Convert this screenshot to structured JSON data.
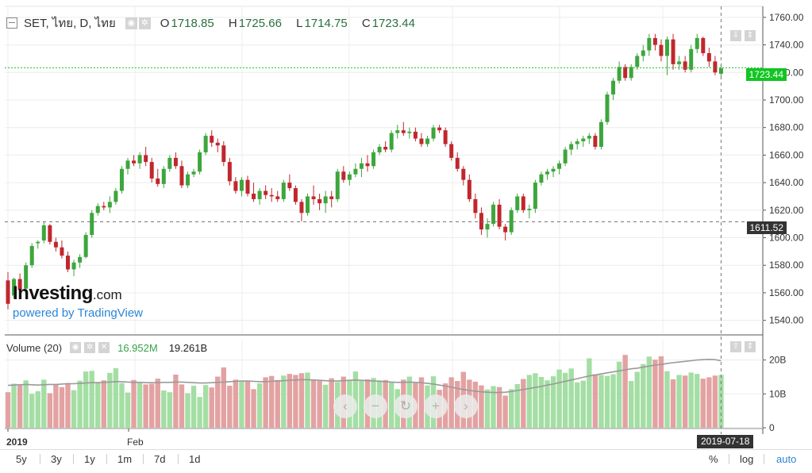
{
  "legend": {
    "title": "SET, ไทย, D, ไทย",
    "open_label": "O",
    "open": "1718.85",
    "high_label": "H",
    "high": "1725.66",
    "low_label": "L",
    "low": "1714.75",
    "close_label": "C",
    "close": "1723.44"
  },
  "volume_legend": {
    "title": "Volume (20)",
    "value1": "16.952M",
    "value2": "19.261B"
  },
  "logo": {
    "brand": "Investing",
    "domain": ".com",
    "powered": "powered by TradingView"
  },
  "price_tags": {
    "last": "1723.44",
    "crosshair": "1611.52"
  },
  "crosshair_date": "2019-07-18",
  "toolbar": {
    "ranges": [
      "5y",
      "3y",
      "1y",
      "1m",
      "7d",
      "1d"
    ],
    "percent": "%",
    "log": "log",
    "auto": "auto"
  },
  "colors": {
    "up": "#3da63d",
    "down": "#c0272d",
    "up_vol": "#a4dea4",
    "down_vol": "#e3a2a2",
    "last_price": "#11c522",
    "ma": "#9a9a9a"
  },
  "icons": {
    "nav": [
      "chevron-left-icon",
      "minus-icon",
      "reset-icon",
      "plus-icon",
      "chevron-right-icon"
    ]
  },
  "chart_data": {
    "type": "candlestick",
    "symbol": "SET",
    "interval": "D",
    "price_axis": {
      "range": [
        1530,
        1768
      ],
      "ticks": [
        1540,
        1560,
        1580,
        1600,
        1620,
        1640,
        1660,
        1680,
        1700,
        1720,
        1740,
        1760
      ]
    },
    "volume_axis": {
      "range": [
        0,
        26
      ],
      "ticks": [
        0,
        10,
        20
      ],
      "tick_labels": [
        "0",
        "10B",
        "20B"
      ]
    },
    "x_labels": [
      "2019",
      "Feb"
    ],
    "crosshair": {
      "price": 1611.52,
      "date": "2019-07-18"
    },
    "last_price": 1723.44,
    "ohlc": [
      [
        1569,
        1575,
        1548,
        1552
      ],
      [
        1558,
        1571,
        1556,
        1570
      ],
      [
        1570,
        1574,
        1560,
        1562
      ],
      [
        1563,
        1582,
        1562,
        1580
      ],
      [
        1580,
        1596,
        1578,
        1594
      ],
      [
        1596,
        1598,
        1592,
        1597
      ],
      [
        1598,
        1612,
        1596,
        1609
      ],
      [
        1609,
        1610,
        1595,
        1597
      ],
      [
        1597,
        1600,
        1590,
        1593
      ],
      [
        1593,
        1598,
        1585,
        1587
      ],
      [
        1587,
        1590,
        1575,
        1577
      ],
      [
        1577,
        1584,
        1572,
        1582
      ],
      [
        1582,
        1588,
        1578,
        1586
      ],
      [
        1586,
        1604,
        1585,
        1602
      ],
      [
        1602,
        1620,
        1600,
        1618
      ],
      [
        1618,
        1625,
        1616,
        1623
      ],
      [
        1623,
        1626,
        1620,
        1622
      ],
      [
        1622,
        1630,
        1618,
        1626
      ],
      [
        1626,
        1636,
        1624,
        1634
      ],
      [
        1634,
        1652,
        1632,
        1650
      ],
      [
        1650,
        1658,
        1646,
        1656
      ],
      [
        1656,
        1660,
        1652,
        1654
      ],
      [
        1654,
        1662,
        1650,
        1660
      ],
      [
        1660,
        1666,
        1652,
        1655
      ],
      [
        1655,
        1658,
        1640,
        1643
      ],
      [
        1643,
        1650,
        1637,
        1639
      ],
      [
        1639,
        1652,
        1636,
        1650
      ],
      [
        1650,
        1660,
        1648,
        1658
      ],
      [
        1658,
        1662,
        1650,
        1652
      ],
      [
        1652,
        1656,
        1636,
        1638
      ],
      [
        1638,
        1648,
        1636,
        1646
      ],
      [
        1646,
        1650,
        1644,
        1648
      ],
      [
        1648,
        1664,
        1646,
        1662
      ],
      [
        1662,
        1676,
        1660,
        1674
      ],
      [
        1674,
        1678,
        1666,
        1669
      ],
      [
        1669,
        1672,
        1662,
        1667
      ],
      [
        1667,
        1670,
        1652,
        1655
      ],
      [
        1655,
        1658,
        1638,
        1641
      ],
      [
        1641,
        1644,
        1632,
        1634
      ],
      [
        1634,
        1644,
        1630,
        1642
      ],
      [
        1642,
        1645,
        1630,
        1632
      ],
      [
        1632,
        1640,
        1626,
        1628
      ],
      [
        1628,
        1636,
        1624,
        1634
      ],
      [
        1634,
        1638,
        1628,
        1631
      ],
      [
        1631,
        1636,
        1626,
        1630
      ],
      [
        1630,
        1634,
        1626,
        1628
      ],
      [
        1628,
        1642,
        1626,
        1640
      ],
      [
        1640,
        1646,
        1634,
        1636
      ],
      [
        1636,
        1638,
        1624,
        1626
      ],
      [
        1626,
        1628,
        1612,
        1618
      ],
      [
        1618,
        1632,
        1616,
        1630
      ],
      [
        1630,
        1638,
        1624,
        1628
      ],
      [
        1628,
        1632,
        1620,
        1625
      ],
      [
        1625,
        1634,
        1618,
        1630
      ],
      [
        1630,
        1634,
        1622,
        1628
      ],
      [
        1628,
        1650,
        1626,
        1648
      ],
      [
        1648,
        1652,
        1640,
        1642
      ],
      [
        1642,
        1648,
        1638,
        1646
      ],
      [
        1646,
        1654,
        1644,
        1650
      ],
      [
        1650,
        1658,
        1644,
        1654
      ],
      [
        1654,
        1660,
        1648,
        1652
      ],
      [
        1652,
        1664,
        1650,
        1662
      ],
      [
        1662,
        1668,
        1660,
        1666
      ],
      [
        1666,
        1670,
        1662,
        1664
      ],
      [
        1664,
        1678,
        1662,
        1676
      ],
      [
        1676,
        1682,
        1672,
        1678
      ],
      [
        1678,
        1684,
        1674,
        1676
      ],
      [
        1676,
        1680,
        1672,
        1677
      ],
      [
        1677,
        1680,
        1670,
        1672
      ],
      [
        1672,
        1676,
        1666,
        1668
      ],
      [
        1668,
        1674,
        1666,
        1672
      ],
      [
        1672,
        1682,
        1670,
        1680
      ],
      [
        1680,
        1682,
        1676,
        1678
      ],
      [
        1678,
        1680,
        1666,
        1668
      ],
      [
        1668,
        1670,
        1656,
        1658
      ],
      [
        1658,
        1662,
        1648,
        1650
      ],
      [
        1650,
        1652,
        1638,
        1642
      ],
      [
        1642,
        1646,
        1626,
        1628
      ],
      [
        1628,
        1632,
        1614,
        1618
      ],
      [
        1618,
        1622,
        1602,
        1606
      ],
      [
        1606,
        1614,
        1600,
        1610
      ],
      [
        1610,
        1626,
        1608,
        1624
      ],
      [
        1624,
        1628,
        1606,
        1608
      ],
      [
        1608,
        1610,
        1598,
        1604
      ],
      [
        1604,
        1622,
        1602,
        1620
      ],
      [
        1620,
        1632,
        1618,
        1630
      ],
      [
        1630,
        1632,
        1618,
        1620
      ],
      [
        1620,
        1624,
        1614,
        1621
      ],
      [
        1621,
        1642,
        1618,
        1640
      ],
      [
        1640,
        1648,
        1638,
        1646
      ],
      [
        1646,
        1650,
        1642,
        1648
      ],
      [
        1648,
        1652,
        1644,
        1650
      ],
      [
        1650,
        1656,
        1646,
        1654
      ],
      [
        1654,
        1666,
        1652,
        1664
      ],
      [
        1664,
        1670,
        1660,
        1668
      ],
      [
        1668,
        1672,
        1664,
        1670
      ],
      [
        1670,
        1674,
        1666,
        1672
      ],
      [
        1672,
        1676,
        1668,
        1674
      ],
      [
        1674,
        1676,
        1664,
        1666
      ],
      [
        1666,
        1686,
        1664,
        1684
      ],
      [
        1684,
        1706,
        1682,
        1704
      ],
      [
        1704,
        1716,
        1700,
        1714
      ],
      [
        1714,
        1728,
        1712,
        1724
      ],
      [
        1724,
        1726,
        1714,
        1716
      ],
      [
        1716,
        1726,
        1714,
        1724
      ],
      [
        1724,
        1734,
        1722,
        1732
      ],
      [
        1732,
        1740,
        1728,
        1736
      ],
      [
        1736,
        1748,
        1732,
        1745
      ],
      [
        1745,
        1748,
        1736,
        1740
      ],
      [
        1740,
        1744,
        1728,
        1732
      ],
      [
        1732,
        1746,
        1718,
        1744
      ],
      [
        1744,
        1748,
        1722,
        1726
      ],
      [
        1726,
        1732,
        1722,
        1728
      ],
      [
        1728,
        1732,
        1720,
        1722
      ],
      [
        1722,
        1740,
        1720,
        1737
      ],
      [
        1737,
        1748,
        1734,
        1745
      ],
      [
        1745,
        1746,
        1732,
        1734
      ],
      [
        1734,
        1738,
        1724,
        1728
      ],
      [
        1728,
        1732,
        1718,
        1720
      ],
      [
        1719,
        1726,
        1715,
        1723
      ]
    ],
    "volume": [
      10.5,
      13,
      12.5,
      14,
      10,
      10.8,
      14.2,
      10.2,
      12.8,
      12,
      13.2,
      11.1,
      13.9,
      16.6,
      16.8,
      13.5,
      14,
      16.2,
      17.6,
      13.2,
      10.4,
      14.1,
      13.3,
      12.8,
      13,
      14.5,
      11,
      10.5,
      15.7,
      12.8,
      10.2,
      12.4,
      9.1,
      12.6,
      11.9,
      15.1,
      17.8,
      12.4,
      14.2,
      13.7,
      13.8,
      11.4,
      13.1,
      14.9,
      15.3,
      14.1,
      15.4,
      15.9,
      15.6,
      16.1,
      16.3,
      14.1,
      13.8,
      12.7,
      14.6,
      13.5,
      15.1,
      14.1,
      16.6,
      14,
      14.3,
      14.7,
      14,
      14.1,
      13.6,
      11.4,
      14.2,
      15.1,
      13.2,
      14.9,
      12.5,
      15.2,
      11.2,
      13.1,
      14.9,
      13.8,
      16.5,
      14.2,
      13.6,
      12.5,
      11.3,
      12.3,
      12,
      9.5,
      11.4,
      12.9,
      14.4,
      15.6,
      16.1,
      15,
      14,
      15.2,
      17.2,
      16.2,
      17.5,
      13.4,
      13.9,
      20.5,
      15.8,
      15.6,
      15.3,
      15.8,
      19.5,
      21.5,
      13.8,
      16.5,
      18.8,
      21,
      20.1,
      21.1,
      16.7,
      14.3,
      15.6,
      15.4,
      16.3,
      15.9,
      14.5,
      14.9,
      15.4,
      15.6
    ],
    "volume_ma": [
      12.5,
      12.6,
      12.7,
      12.8,
      12.7,
      12.6,
      12.7,
      12.8,
      12.8,
      12.9,
      13,
      13,
      13.1,
      13.2,
      13.3,
      13.3,
      13.4,
      13.5,
      13.6,
      13.6,
      13.5,
      13.4,
      13.4,
      13.3,
      13.3,
      13.3,
      13.4,
      13.4,
      13.5,
      13.5,
      13.4,
      13.3,
      13.2,
      13.2,
      13.3,
      13.4,
      13.5,
      13.6,
      13.7,
      13.8,
      13.8,
      13.7,
      13.6,
      13.6,
      13.7,
      13.8,
      13.9,
      14,
      14.1,
      14.2,
      14.2,
      14.1,
      14,
      13.9,
      13.8,
      13.8,
      13.9,
      14,
      14.1,
      14,
      13.9,
      13.8,
      13.7,
      13.6,
      13.5,
      13.4,
      13.4,
      13.5,
      13.4,
      13.3,
      13.1,
      12.9,
      12.6,
      12.3,
      12,
      11.6,
      11.3,
      11,
      10.8,
      10.6,
      10.5,
      10.4,
      10.4,
      10.5,
      10.7,
      11,
      11.3,
      11.6,
      11.9,
      12.2,
      12.6,
      12.9,
      13.3,
      13.7,
      14.1,
      14.5,
      14.9,
      15.3,
      15.6,
      15.9,
      16.2,
      16.5,
      16.8,
      17.1,
      17.4,
      17.6,
      17.9,
      18.2,
      18.5,
      18.7,
      19,
      19.2,
      19.4,
      19.6,
      19.8,
      20,
      20.1,
      20.2,
      20.1,
      19.8
    ]
  }
}
